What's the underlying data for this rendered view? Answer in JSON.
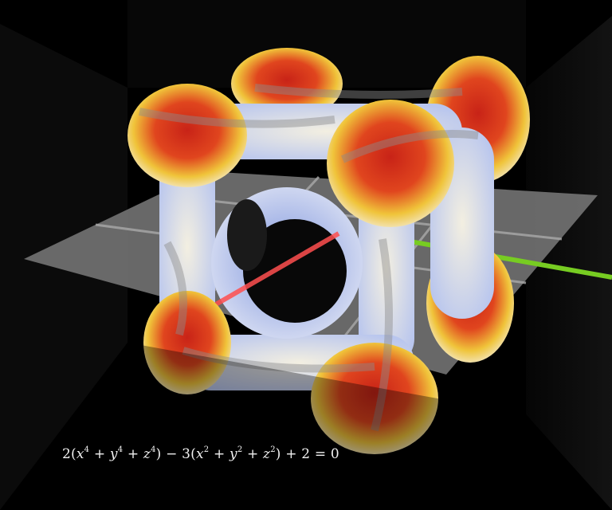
{
  "scene": {
    "background_color": "#000000",
    "box_face_color": "#0e0e0e",
    "floor_color": "#7a7a7a",
    "surface_colors": [
      "#8fa6e8",
      "#f3efe1",
      "#f0c43a",
      "#e0451e",
      "#c82317"
    ],
    "x_axis_color": "#ff4f4f",
    "y_axis_color": "#77cc22"
  },
  "equation": {
    "latex": "2(x^4 + y^4 + z^4) - 3(x^2 + y^2 + z^2) + 2 = 0"
  }
}
